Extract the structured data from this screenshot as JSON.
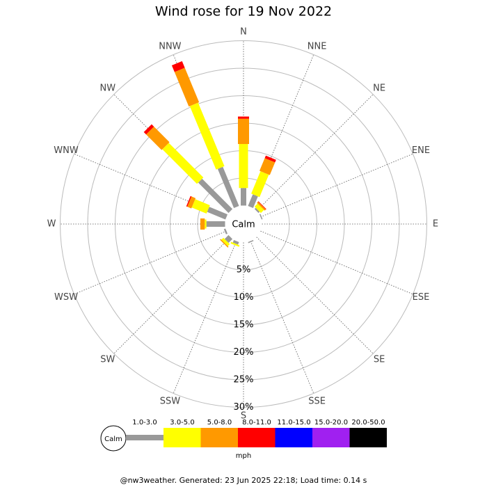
{
  "chart_data": {
    "type": "windrose",
    "title": "Wind rose for 19 Nov 2022",
    "directions": [
      "N",
      "NNE",
      "NE",
      "ENE",
      "E",
      "ESE",
      "SE",
      "SSE",
      "S",
      "SSW",
      "SW",
      "WSW",
      "W",
      "WNW",
      "NW",
      "NNW"
    ],
    "series": [
      {
        "name": "1.0-3.0",
        "color": "#999999",
        "values": [
          3.2,
          2.3,
          0.3,
          0.2,
          0,
          0,
          0,
          0.2,
          0,
          0.5,
          1.0,
          0.3,
          3.4,
          3.6,
          7.8,
          7.7
        ]
      },
      {
        "name": "3.0-5.0",
        "color": "#ffff00",
        "values": [
          8.0,
          4.4,
          0.8,
          0,
          0,
          0,
          0,
          0,
          0,
          0.3,
          0.5,
          0,
          0.3,
          2.9,
          8.9,
          12.5
        ]
      },
      {
        "name": "5.0-8.0",
        "color": "#ff9900",
        "values": [
          4.6,
          2.5,
          0.3,
          0,
          0,
          0,
          0,
          0,
          0,
          0,
          0.2,
          0,
          0.8,
          0.8,
          4.0,
          6.8
        ]
      },
      {
        "name": "8.0-11.0",
        "color": "#ff0000",
        "values": [
          0.4,
          0.5,
          0.1,
          0,
          0,
          0,
          0,
          0,
          0,
          0,
          0,
          0,
          0,
          0.2,
          0.6,
          1.3
        ]
      },
      {
        "name": "11.0-15.0",
        "color": "#0000ff",
        "values": [
          0,
          0,
          0,
          0,
          0,
          0,
          0,
          0,
          0,
          0,
          0,
          0,
          0,
          0,
          0,
          0
        ]
      },
      {
        "name": "15.0-20.0",
        "color": "#a020f0",
        "values": [
          0,
          0,
          0,
          0,
          0,
          0,
          0,
          0,
          0,
          0,
          0,
          0,
          0,
          0,
          0,
          0
        ]
      },
      {
        "name": "20.0-50.0",
        "color": "#000000",
        "values": [
          0,
          0,
          0,
          0,
          0,
          0,
          0,
          0,
          0,
          0,
          0,
          0,
          0,
          0,
          0,
          0
        ]
      }
    ],
    "rlim": [
      0,
      30
    ],
    "rticks": [
      {
        "value": 5,
        "label": "5%"
      },
      {
        "value": 10,
        "label": "10%"
      },
      {
        "value": 15,
        "label": "15%"
      },
      {
        "value": 20,
        "label": "20%"
      },
      {
        "value": 25,
        "label": "25%"
      },
      {
        "value": 30,
        "label": "30%"
      }
    ],
    "calm_label": "Calm",
    "legend_title": "mph",
    "footer": "@nw3weather. Generated: 23 Jun 2025 22:18; Load time: 0.14 s"
  }
}
